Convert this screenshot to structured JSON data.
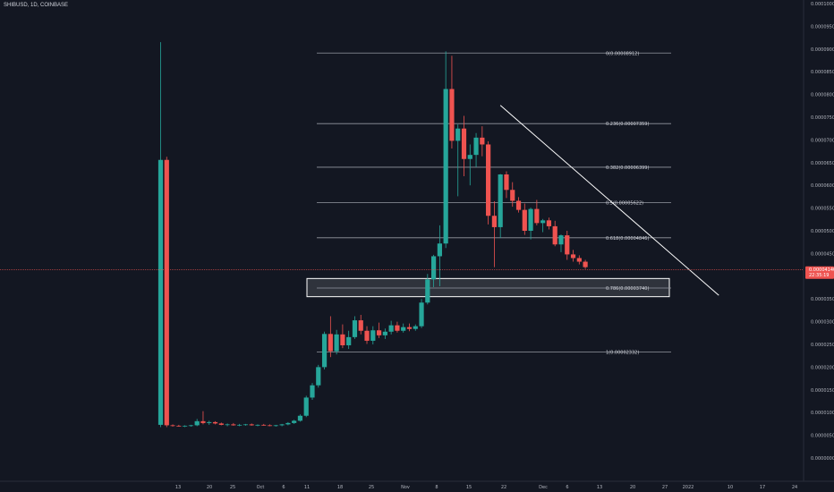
{
  "header": {
    "title": "SHIBUSD, 1D, COINBASE"
  },
  "colors": {
    "background": "#131722",
    "up": "#26a69a",
    "down": "#ef5350",
    "fib_line": "#9598a1",
    "trend_line": "#ffffff",
    "current_price": "#ef5350"
  },
  "chart_data": {
    "type": "candlestick",
    "symbol": "SHIBUSD",
    "timeframe": "1D",
    "exchange": "COINBASE",
    "y_axis": {
      "range": [
        0,
        0.0001
      ],
      "ticks": [
        "0.00010000",
        "0.00009500",
        "0.00009000",
        "0.00008500",
        "0.00008000",
        "0.00007500",
        "0.00007000",
        "0.00006500",
        "0.00006000",
        "0.00005500",
        "0.00005000",
        "0.00004500",
        "0.00003500",
        "0.00003000",
        "0.00002500",
        "0.00002000",
        "0.00001500",
        "0.00001000",
        "0.00000500",
        "0.00000000"
      ]
    },
    "x_axis": {
      "ticks": [
        "13",
        "20",
        "25",
        "Oct",
        "6",
        "11",
        "18",
        "25",
        "Nov",
        "8",
        "15",
        "22",
        "Dec",
        "6",
        "13",
        "20",
        "27",
        "2022",
        "10",
        "17",
        "24"
      ]
    },
    "current_price": {
      "value": 4.14e-05,
      "label": "0.00004140",
      "countdown": "22:35:19"
    },
    "fib_levels": [
      {
        "ratio": 0,
        "price": 8.912e-05,
        "label": "0(0.00008912)"
      },
      {
        "ratio": 0.236,
        "price": 7.359e-05,
        "label": "0.236(0.00007359)"
      },
      {
        "ratio": 0.382,
        "price": 6.399e-05,
        "label": "0.382(0.00006399)"
      },
      {
        "ratio": 0.5,
        "price": 5.622e-05,
        "label": "0.5(0.00005622)"
      },
      {
        "ratio": 0.618,
        "price": 4.846e-05,
        "label": "0.618(0.00004846)"
      },
      {
        "ratio": 0.786,
        "price": 3.74e-05,
        "label": "0.786(0.00003740)"
      },
      {
        "ratio": 1,
        "price": 2.332e-05,
        "label": "1(0.00002332)"
      }
    ],
    "zone": {
      "from": 3.55e-05,
      "to": 3.95e-05
    },
    "trend_line": {
      "from": {
        "candle": 56,
        "price": 7.76e-05
      },
      "to": {
        "candle": 92,
        "price": 3.58e-05
      }
    },
    "candles": [
      [
        7.3e-06,
        9.15e-05,
        6.8e-06,
        6.56e-05
      ],
      [
        6.56e-05,
        6.63e-05,
        6.8e-06,
        7.2e-06
      ],
      [
        7.2e-06,
        7.4e-06,
        6.9e-06,
        7.1e-06
      ],
      [
        7.1e-06,
        7.3e-06,
        6.9e-06,
        7e-06
      ],
      [
        7e-06,
        7.2e-06,
        6.8e-06,
        7.1e-06
      ],
      [
        7.1e-06,
        7.3e-06,
        6.9e-06,
        7.2e-06
      ],
      [
        7.2e-06,
        8.6e-06,
        7e-06,
        8.1e-06
      ],
      [
        8.1e-06,
        1.03e-05,
        7.4e-06,
        7.7e-06
      ],
      [
        7.7e-06,
        8.2e-06,
        7.3e-06,
        7.9e-06
      ],
      [
        7.9e-06,
        8.1e-06,
        7.4e-06,
        7.6e-06
      ],
      [
        7.6e-06,
        7.8e-06,
        7.2e-06,
        7.3e-06
      ],
      [
        7.3e-06,
        7.6e-06,
        7e-06,
        7.4e-06
      ],
      [
        7.4e-06,
        7.7e-06,
        7.1e-06,
        7.2e-06
      ],
      [
        7.2e-06,
        7.5e-06,
        7e-06,
        7.3e-06
      ],
      [
        7.3e-06,
        7.5e-06,
        7.1e-06,
        7.4e-06
      ],
      [
        7.4e-06,
        7.6e-06,
        7.1e-06,
        7.2e-06
      ],
      [
        7.2e-06,
        7.4e-06,
        7e-06,
        7.3e-06
      ],
      [
        7.3e-06,
        7.5e-06,
        7.1e-06,
        7.2e-06
      ],
      [
        7.2e-06,
        7.4e-06,
        7e-06,
        7.1e-06
      ],
      [
        7.1e-06,
        7.3e-06,
        6.9e-06,
        7.2e-06
      ],
      [
        7.2e-06,
        7.5e-06,
        7e-06,
        7.4e-06
      ],
      [
        7.4e-06,
        7.9e-06,
        7.2e-06,
        7.7e-06
      ],
      [
        7.7e-06,
        8.4e-06,
        7.5e-06,
        8.2e-06
      ],
      [
        8.2e-06,
        9.6e-06,
        8e-06,
        9.3e-06
      ],
      [
        9.3e-06,
        1.37e-05,
        9e-06,
        1.33e-05
      ],
      [
        1.33e-05,
        1.65e-05,
        1.28e-05,
        1.6e-05
      ],
      [
        1.6e-05,
        2.05e-05,
        1.55e-05,
        2e-05
      ],
      [
        2e-05,
        2.78e-05,
        1.95e-05,
        2.73e-05
      ],
      [
        2.73e-05,
        3.12e-05,
        2.22e-05,
        2.35e-05
      ],
      [
        2.35e-05,
        2.82e-05,
        2.28e-05,
        2.72e-05
      ],
      [
        2.72e-05,
        2.94e-05,
        2.42e-05,
        2.48e-05
      ],
      [
        2.48e-05,
        2.8e-05,
        2.4e-05,
        2.66e-05
      ],
      [
        2.66e-05,
        3.12e-05,
        2.62e-05,
        3.03e-05
      ],
      [
        3.03e-05,
        3.15e-05,
        2.72e-05,
        2.8e-05
      ],
      [
        2.8e-05,
        2.9e-05,
        2.51e-05,
        2.58e-05
      ],
      [
        2.58e-05,
        2.9e-05,
        2.5e-05,
        2.81e-05
      ],
      [
        2.81e-05,
        2.98e-05,
        2.64e-05,
        2.7e-05
      ],
      [
        2.7e-05,
        2.85e-05,
        2.62e-05,
        2.78e-05
      ],
      [
        2.78e-05,
        3.02e-05,
        2.72e-05,
        2.92e-05
      ],
      [
        2.92e-05,
        3e-05,
        2.76e-05,
        2.8e-05
      ],
      [
        2.8e-05,
        2.96e-05,
        2.76e-05,
        2.88e-05
      ],
      [
        2.88e-05,
        2.96e-05,
        2.79e-05,
        2.84e-05
      ],
      [
        2.84e-05,
        2.94e-05,
        2.8e-05,
        2.9e-05
      ],
      [
        2.9e-05,
        3.5e-05,
        2.86e-05,
        3.42e-05
      ],
      [
        3.42e-05,
        4.05e-05,
        3.38e-05,
        3.93e-05
      ],
      [
        3.93e-05,
        4.47e-05,
        3.76e-05,
        4.44e-05
      ],
      [
        4.44e-05,
        5.12e-05,
        3.78e-05,
        4.72e-05
      ],
      [
        4.72e-05,
        8.95e-05,
        4.62e-05,
        8.12e-05
      ],
      [
        8.12e-05,
        8.85e-05,
        6.81e-05,
        6.98e-05
      ],
      [
        6.98e-05,
        7.34e-05,
        5.76e-05,
        7.25e-05
      ],
      [
        7.25e-05,
        7.53e-05,
        6.2e-05,
        6.58e-05
      ],
      [
        6.58e-05,
        6.9e-05,
        6e-05,
        6.67e-05
      ],
      [
        6.67e-05,
        7.15e-05,
        6.4e-05,
        7.05e-05
      ],
      [
        7.05e-05,
        7.3e-05,
        6.64e-05,
        6.9e-05
      ],
      [
        6.9e-05,
        6.97e-05,
        5.14e-05,
        5.33e-05
      ],
      [
        5.33e-05,
        5.65e-05,
        4.2e-05,
        5.08e-05
      ],
      [
        5.08e-05,
        6.25e-05,
        4.84e-05,
        6.24e-05
      ],
      [
        6.24e-05,
        6.31e-05,
        5.72e-05,
        5.9e-05
      ],
      [
        5.9e-05,
        6.07e-05,
        5.53e-05,
        5.66e-05
      ],
      [
        5.66e-05,
        5.74e-05,
        5.4e-05,
        5.46e-05
      ],
      [
        5.46e-05,
        5.6e-05,
        4.91e-05,
        5e-05
      ],
      [
        5e-05,
        5.51e-05,
        4.81e-05,
        5.48e-05
      ],
      [
        5.48e-05,
        5.68e-05,
        5.12e-05,
        5.17e-05
      ],
      [
        5.17e-05,
        5.26e-05,
        4.97e-05,
        5.23e-05
      ],
      [
        5.23e-05,
        5.29e-05,
        5.03e-05,
        5.1e-05
      ],
      [
        5.1e-05,
        5.22e-05,
        4.66e-05,
        4.7e-05
      ],
      [
        4.7e-05,
        4.92e-05,
        4.53e-05,
        4.9e-05
      ],
      [
        4.9e-05,
        5e-05,
        4.36e-05,
        4.48e-05
      ],
      [
        4.48e-05,
        4.58e-05,
        4.32e-05,
        4.4e-05
      ],
      [
        4.4e-05,
        4.46e-05,
        4.26e-05,
        4.32e-05
      ],
      [
        4.32e-05,
        4.36e-05,
        4.16e-05,
        4.2e-05
      ]
    ]
  }
}
